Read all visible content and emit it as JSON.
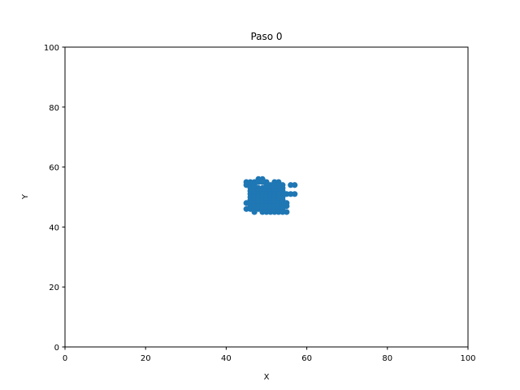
{
  "chart_data": {
    "type": "scatter",
    "title": "Paso 0",
    "xlabel": "X",
    "ylabel": "Y",
    "xlim": [
      0,
      100
    ],
    "ylim": [
      0,
      100
    ],
    "xticks": [
      0,
      20,
      40,
      60,
      80,
      100
    ],
    "yticks": [
      0,
      20,
      40,
      60,
      80,
      100
    ],
    "xtick_labels": [
      "0",
      "20",
      "40",
      "60",
      "80",
      "100"
    ],
    "ytick_labels": [
      "0",
      "20",
      "40",
      "60",
      "80",
      "100"
    ],
    "grid": false,
    "marker_color": "#1f77b4",
    "points": [
      [
        45,
        55
      ],
      [
        46,
        55
      ],
      [
        47,
        55
      ],
      [
        48,
        56
      ],
      [
        49,
        56
      ],
      [
        50,
        55
      ],
      [
        52,
        55
      ],
      [
        53,
        55
      ],
      [
        54,
        54
      ],
      [
        45,
        54
      ],
      [
        46,
        54
      ],
      [
        47,
        54
      ],
      [
        48,
        55
      ],
      [
        49,
        55
      ],
      [
        50,
        54
      ],
      [
        51,
        54
      ],
      [
        52,
        54
      ],
      [
        53,
        54
      ],
      [
        54,
        53
      ],
      [
        56,
        54
      ],
      [
        57,
        54
      ],
      [
        46,
        53
      ],
      [
        47,
        53
      ],
      [
        48,
        53
      ],
      [
        49,
        53
      ],
      [
        50,
        53
      ],
      [
        51,
        53
      ],
      [
        52,
        53
      ],
      [
        53,
        53
      ],
      [
        54,
        52
      ],
      [
        46,
        52
      ],
      [
        47,
        52
      ],
      [
        48,
        52
      ],
      [
        49,
        52
      ],
      [
        50,
        52
      ],
      [
        51,
        52
      ],
      [
        52,
        52
      ],
      [
        53,
        52
      ],
      [
        54,
        51
      ],
      [
        55,
        51
      ],
      [
        56,
        51
      ],
      [
        57,
        51
      ],
      [
        46,
        51
      ],
      [
        47,
        51
      ],
      [
        48,
        51
      ],
      [
        49,
        51
      ],
      [
        50,
        51
      ],
      [
        51,
        51
      ],
      [
        52,
        51
      ],
      [
        53,
        51
      ],
      [
        54,
        50
      ],
      [
        46,
        50
      ],
      [
        47,
        50
      ],
      [
        48,
        50
      ],
      [
        49,
        50
      ],
      [
        50,
        50
      ],
      [
        51,
        50
      ],
      [
        52,
        50
      ],
      [
        53,
        50
      ],
      [
        54,
        49
      ],
      [
        46,
        49
      ],
      [
        47,
        49
      ],
      [
        48,
        49
      ],
      [
        49,
        49
      ],
      [
        50,
        49
      ],
      [
        51,
        49
      ],
      [
        52,
        49
      ],
      [
        53,
        49
      ],
      [
        54,
        48
      ],
      [
        55,
        48
      ],
      [
        45,
        48
      ],
      [
        46,
        48
      ],
      [
        47,
        48
      ],
      [
        48,
        48
      ],
      [
        49,
        48
      ],
      [
        50,
        48
      ],
      [
        51,
        48
      ],
      [
        52,
        48
      ],
      [
        53,
        48
      ],
      [
        46,
        47
      ],
      [
        47,
        47
      ],
      [
        48,
        47
      ],
      [
        49,
        47
      ],
      [
        50,
        47
      ],
      [
        51,
        47
      ],
      [
        52,
        47
      ],
      [
        53,
        47
      ],
      [
        54,
        47
      ],
      [
        55,
        47
      ],
      [
        45,
        46
      ],
      [
        46,
        46
      ],
      [
        47,
        46
      ],
      [
        48,
        46
      ],
      [
        49,
        46
      ],
      [
        50,
        46
      ],
      [
        51,
        46
      ],
      [
        52,
        46
      ],
      [
        53,
        46
      ],
      [
        54,
        46
      ],
      [
        47,
        45
      ],
      [
        49,
        45
      ],
      [
        50,
        45
      ],
      [
        51,
        45
      ],
      [
        52,
        45
      ],
      [
        53,
        45
      ],
      [
        54,
        45
      ],
      [
        55,
        45
      ]
    ]
  }
}
